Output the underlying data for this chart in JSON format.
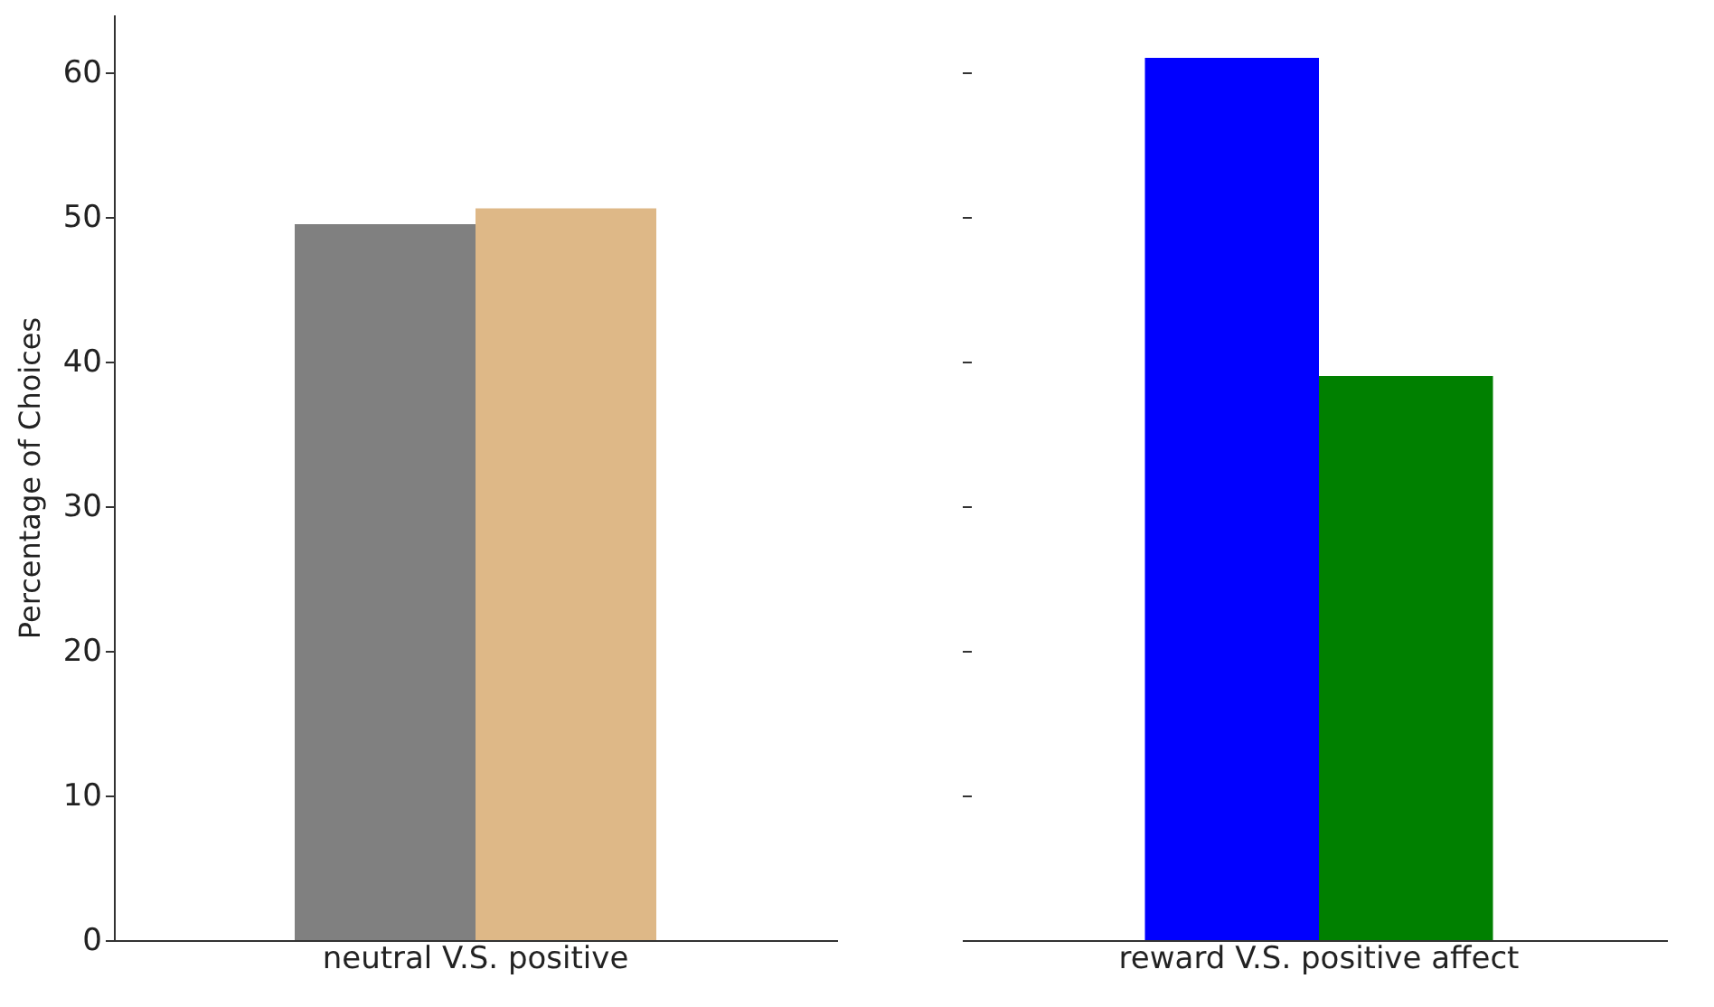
{
  "chart_data": [
    {
      "type": "bar",
      "ylabel": "Percentage of Choices",
      "categories": [
        "neutral V.S. positive"
      ],
      "series": [
        {
          "color": "#808080",
          "values": [
            49.5
          ]
        },
        {
          "color": "#deb887",
          "values": [
            50.6
          ]
        }
      ],
      "ylim": [
        0,
        64
      ],
      "yticks": [
        0,
        10,
        20,
        30,
        40,
        50,
        60
      ],
      "grid": false,
      "legend": false
    },
    {
      "type": "bar",
      "categories": [
        "reward V.S. positive affect"
      ],
      "series": [
        {
          "color": "#0000ff",
          "values": [
            61.0
          ]
        },
        {
          "color": "#008000",
          "values": [
            39.0
          ]
        }
      ],
      "yticks": [
        0,
        10,
        20,
        30,
        40,
        50,
        60
      ],
      "grid": false,
      "legend": false,
      "tick_labels": "x"
    }
  ]
}
